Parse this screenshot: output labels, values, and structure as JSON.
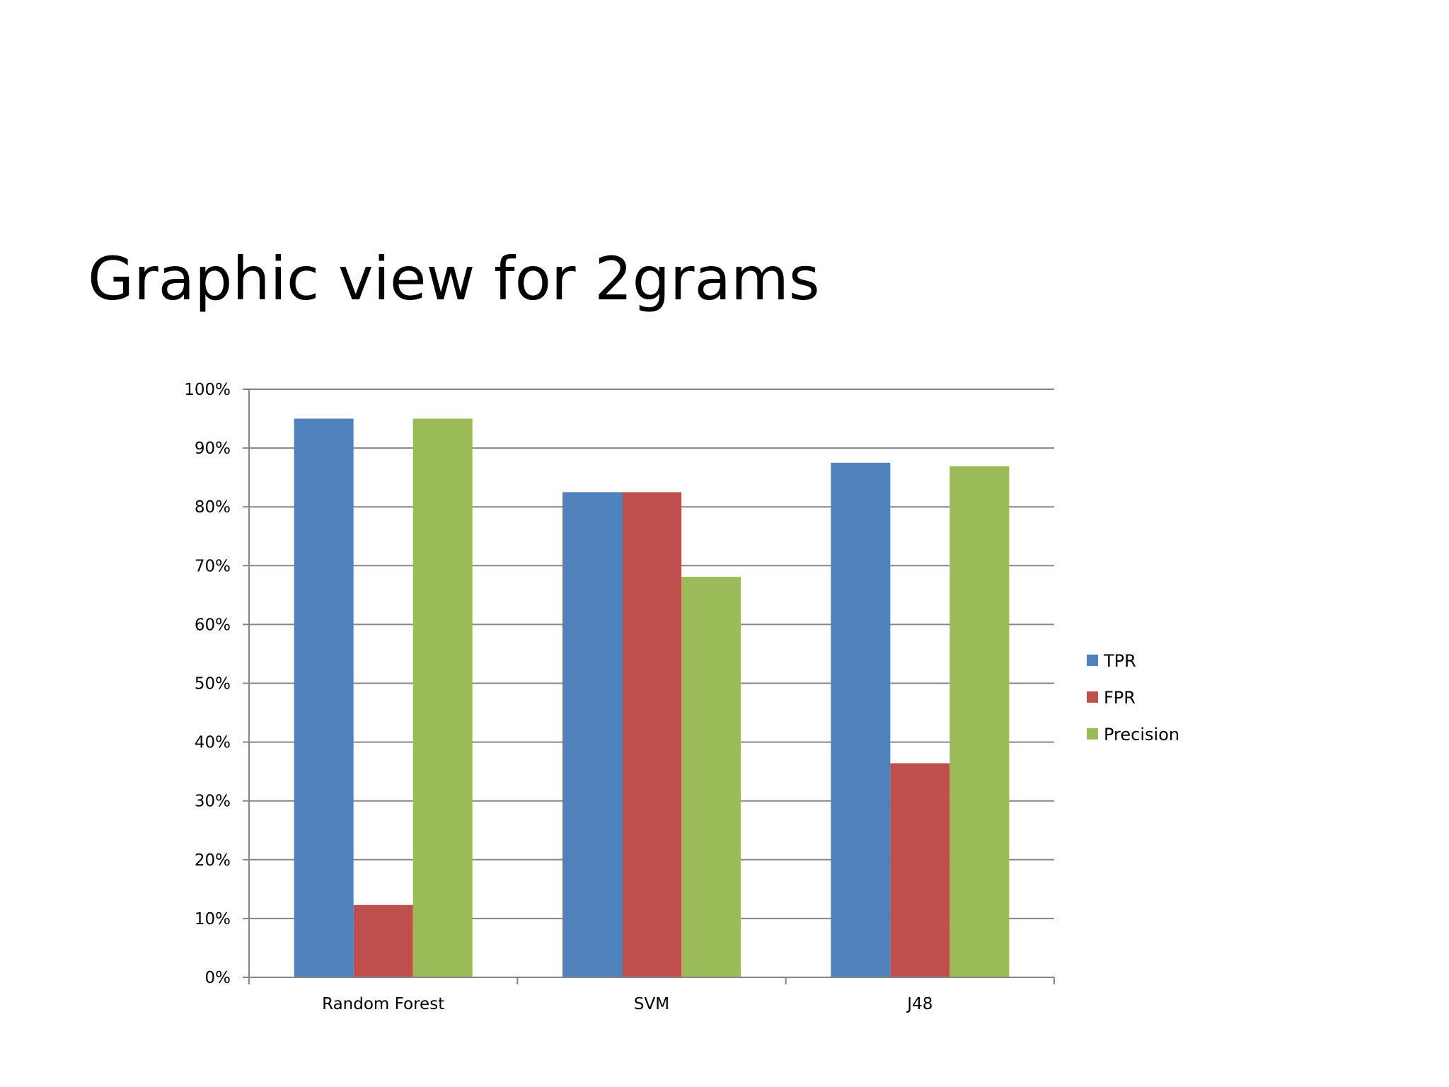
{
  "slide": {
    "title": "Graphic view for 2grams"
  },
  "chart_data": {
    "type": "bar",
    "categories": [
      "Random Forest",
      "SVM",
      "J48"
    ],
    "series": [
      {
        "name": "TPR",
        "color": "#4F81BD",
        "values": [
          95,
          82.5,
          87.5
        ]
      },
      {
        "name": "FPR",
        "color": "#C0504D",
        "values": [
          12.3,
          82.5,
          36.4
        ]
      },
      {
        "name": "Precision",
        "color": "#9BBB59",
        "values": [
          95,
          68.1,
          86.9
        ]
      }
    ],
    "yticks": [
      "0%",
      "10%",
      "20%",
      "30%",
      "40%",
      "50%",
      "60%",
      "70%",
      "80%",
      "90%",
      "100%"
    ],
    "ylim": [
      0,
      100
    ],
    "grid": true,
    "legend_position": "right"
  }
}
